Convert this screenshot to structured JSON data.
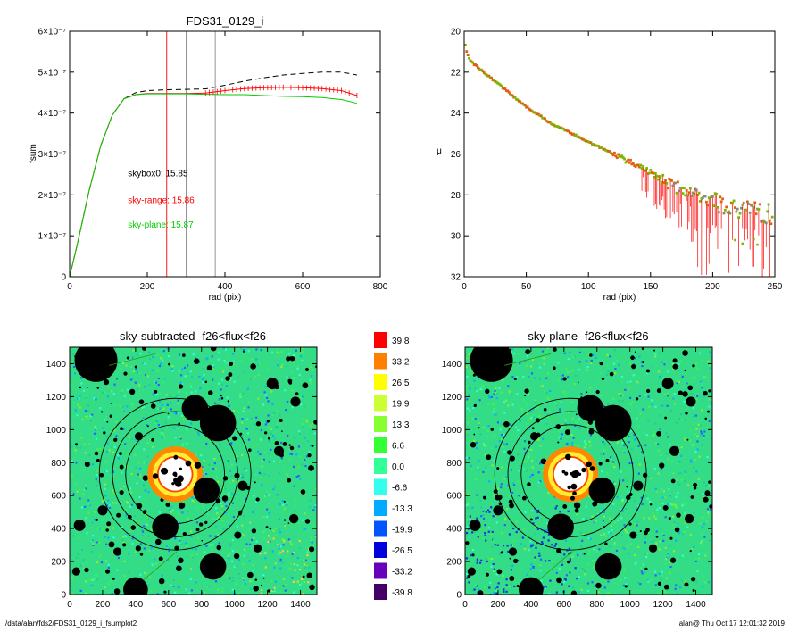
{
  "footer": {
    "path": "/data/alan/fds2/FDS31_0129_i_fsumplot2",
    "stamp": "alan@  Thu Oct 17 12:01:32 2019"
  },
  "colors": {
    "black": "#000000",
    "red": "#ff0000",
    "green": "#00cc00",
    "olive": "#7a7a00",
    "gray": "#888888",
    "orange_marker": "#e06010",
    "green_marker": "#7ab800"
  },
  "chart_data": [
    {
      "id": "fsum",
      "type": "line",
      "title": "FDS31_0129_i",
      "xlabel": "rad (pix)",
      "ylabel": "fsum",
      "xlim": [
        0,
        800
      ],
      "ylim": [
        0,
        6e-07
      ],
      "xticks": [
        "0",
        "200",
        "400",
        "600",
        "800"
      ],
      "yticks": [
        "0",
        "1×10⁻⁷",
        "2×10⁻⁷",
        "3×10⁻⁷",
        "4×10⁻⁷",
        "5×10⁻⁷",
        "6×10⁻⁷"
      ],
      "vlines": [
        {
          "x": 250,
          "color": "#ff0000"
        },
        {
          "x": 300,
          "color": "#888888"
        },
        {
          "x": 375,
          "color": "#888888"
        }
      ],
      "annotations": [
        {
          "text": "skybox0: 15.85",
          "color": "#000000",
          "x": 150,
          "y": 2.45e-07
        },
        {
          "text": "sky-range: 15.86",
          "color": "#ff0000",
          "x": 150,
          "y": 1.8e-07
        },
        {
          "text": "sky-plane: 15.87",
          "color": "#00cc00",
          "x": 150,
          "y": 1.2e-07
        }
      ],
      "series": [
        {
          "color": "#000000",
          "dash": "6,4",
          "x": [
            0,
            20,
            50,
            80,
            110,
            140,
            170,
            200,
            250,
            300,
            350,
            400,
            450,
            500,
            550,
            600,
            650,
            700,
            740
          ],
          "y": [
            0,
            8e-08,
            2.1e-07,
            3.2e-07,
            3.95e-07,
            4.35e-07,
            4.5e-07,
            4.55e-07,
            4.57e-07,
            4.58e-07,
            4.59e-07,
            4.68e-07,
            4.78e-07,
            4.86e-07,
            4.93e-07,
            4.97e-07,
            5e-07,
            5e-07,
            4.93e-07
          ]
        },
        {
          "color": "#ff0000",
          "dash": "",
          "x": [
            0,
            20,
            50,
            80,
            110,
            140,
            170,
            200,
            250,
            300,
            350,
            400,
            450,
            500,
            550,
            600,
            650,
            700,
            740
          ],
          "y": [
            0,
            8e-08,
            2.1e-07,
            3.2e-07,
            3.95e-07,
            4.35e-07,
            4.45e-07,
            4.48e-07,
            4.48e-07,
            4.48e-07,
            4.49e-07,
            4.55e-07,
            4.6e-07,
            4.62e-07,
            4.63e-07,
            4.62e-07,
            4.6e-07,
            4.55e-07,
            4.43e-07
          ]
        },
        {
          "color": "#00cc00",
          "dash": "",
          "x": [
            0,
            20,
            50,
            80,
            110,
            140,
            170,
            200,
            250,
            300,
            350,
            400,
            450,
            500,
            550,
            600,
            650,
            700,
            740
          ],
          "y": [
            0,
            8e-08,
            2.1e-07,
            3.2e-07,
            3.95e-07,
            4.35e-07,
            4.45e-07,
            4.47e-07,
            4.47e-07,
            4.47e-07,
            4.46e-07,
            4.45e-07,
            4.45e-07,
            4.43e-07,
            4.41e-07,
            4.4e-07,
            4.38e-07,
            4.33e-07,
            4.24e-07
          ]
        }
      ]
    },
    {
      "id": "mu",
      "type": "scatter",
      "xlabel": "rad (pix)",
      "ylabel": "μ",
      "xlim": [
        0,
        250
      ],
      "ylim": [
        32,
        20
      ],
      "xticks": [
        "0",
        "50",
        "100",
        "150",
        "200",
        "250"
      ],
      "yticks": [
        "20",
        "22",
        "24",
        "26",
        "28",
        "30",
        "32"
      ],
      "profile": {
        "x": [
          1,
          3,
          6,
          10,
          20,
          30,
          40,
          50,
          60,
          70,
          80,
          90,
          100,
          110,
          120,
          130,
          140,
          150,
          160,
          170,
          180,
          190,
          200,
          210,
          220,
          230,
          240,
          250
        ],
        "y": [
          20.7,
          21.2,
          21.5,
          21.7,
          22.2,
          22.7,
          23.2,
          23.7,
          24.1,
          24.5,
          24.8,
          25.1,
          25.4,
          25.7,
          26.0,
          26.3,
          26.6,
          26.9,
          27.3,
          27.6,
          27.9,
          28.1,
          28.3,
          28.5,
          28.6,
          28.8,
          28.9,
          29.0
        ]
      }
    },
    {
      "id": "img-sky-subtracted",
      "type": "heatmap",
      "title": "sky-subtracted -f26<flux<f26",
      "xlim": [
        0,
        1500
      ],
      "ylim": [
        0,
        1500
      ],
      "xticks": [
        "0",
        "200",
        "400",
        "600",
        "800",
        "1000",
        "1200",
        "1400"
      ],
      "yticks": [
        "0",
        "200",
        "400",
        "600",
        "800",
        "1000",
        "1200",
        "1400"
      ]
    },
    {
      "id": "img-sky-plane",
      "type": "heatmap",
      "title": "sky-plane -f26<flux<f26",
      "xlim": [
        0,
        1500
      ],
      "ylim": [
        0,
        1500
      ],
      "xticks": [
        "0",
        "200",
        "400",
        "600",
        "800",
        "1000",
        "1200",
        "1400"
      ],
      "yticks": [
        "0",
        "200",
        "400",
        "600",
        "800",
        "1000",
        "1200",
        "1400"
      ]
    }
  ],
  "colorbar": {
    "labels": [
      "39.8",
      "33.2",
      "26.5",
      "19.9",
      "13.3",
      "6.6",
      "0.0",
      "-6.6",
      "-13.3",
      "-19.9",
      "-26.5",
      "-33.2",
      "-39.8"
    ],
    "colors": [
      "#ff0000",
      "#ff8000",
      "#ffff00",
      "#ccff33",
      "#88ff33",
      "#33ff33",
      "#33ff99",
      "#33ffee",
      "#00aaff",
      "#0055ff",
      "#0000dd",
      "#6600bb",
      "#440066",
      "#000000"
    ]
  },
  "image_features": {
    "masks": [
      {
        "x": 160,
        "y": 1420,
        "r": 130
      },
      {
        "x": 900,
        "y": 1040,
        "r": 110
      },
      {
        "x": 760,
        "y": 1130,
        "r": 80
      },
      {
        "x": 830,
        "y": 630,
        "r": 80
      },
      {
        "x": 580,
        "y": 410,
        "r": 80
      },
      {
        "x": 870,
        "y": 170,
        "r": 80
      },
      {
        "x": 400,
        "y": 30,
        "r": 75
      },
      {
        "x": 1230,
        "y": 1280,
        "r": 35
      },
      {
        "x": 1370,
        "y": 1170,
        "r": 30
      },
      {
        "x": 200,
        "y": 510,
        "r": 30
      },
      {
        "x": 60,
        "y": 420,
        "r": 35
      },
      {
        "x": 1050,
        "y": 660,
        "r": 30
      },
      {
        "x": 420,
        "y": 960,
        "r": 25
      },
      {
        "x": 1270,
        "y": 870,
        "r": 30
      },
      {
        "x": 1140,
        "y": 280,
        "r": 25
      },
      {
        "x": 1360,
        "y": 460,
        "r": 28
      },
      {
        "x": 290,
        "y": 260,
        "r": 25
      },
      {
        "x": 40,
        "y": 140,
        "r": 25
      },
      {
        "x": 1020,
        "y": 360,
        "r": 22
      },
      {
        "x": 680,
        "y": 540,
        "r": 20
      }
    ],
    "galaxy": {
      "x": 640,
      "y": 730,
      "r_core": 100,
      "r_halo": 160
    },
    "rings": [
      300,
      380,
      460
    ]
  }
}
